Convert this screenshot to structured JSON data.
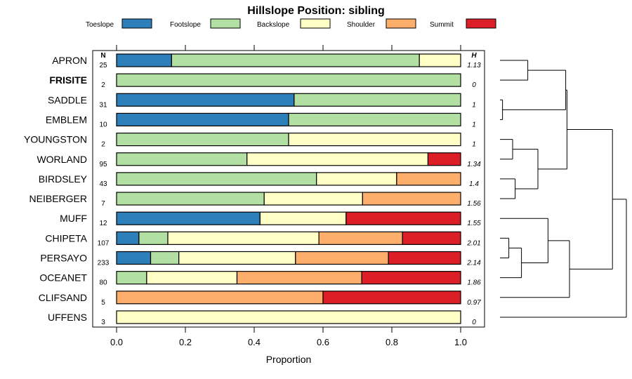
{
  "chart_data": {
    "type": "bar",
    "subtype": "stacked-horizontal-proportion",
    "title": "Hillslope Position: sibling",
    "xlabel": "Proportion",
    "xlim": [
      0,
      1
    ],
    "xticks": [
      "0.0",
      "0.2",
      "0.4",
      "0.6",
      "0.8",
      "1.0"
    ],
    "n_header": "N",
    "h_header": "H",
    "legend": [
      {
        "label": "Toeslope",
        "color": "#2c7fb8"
      },
      {
        "label": "Footslope",
        "color": "#b2dfa2"
      },
      {
        "label": "Backslope",
        "color": "#ffffc6"
      },
      {
        "label": "Shoulder",
        "color": "#fdae6b"
      },
      {
        "label": "Summit",
        "color": "#dc1f26"
      }
    ],
    "categories": [
      "APRON",
      "FRISITE",
      "SADDLE",
      "EMBLEM",
      "YOUNGSTON",
      "WORLAND",
      "BIRDSLEY",
      "NEIBERGER",
      "MUFF",
      "CHIPETA",
      "PERSAYO",
      "OCEANET",
      "CLIFSAND",
      "UFFENS"
    ],
    "highlighted": "FRISITE",
    "n": [
      "25",
      "2",
      "31",
      "10",
      "2",
      "95",
      "43",
      "7",
      "12",
      "107",
      "233",
      "80",
      "5",
      "3"
    ],
    "h": [
      "1.13",
      "0",
      "1",
      "1",
      "1",
      "1.34",
      "1.4",
      "1.56",
      "1.55",
      "2.01",
      "2.14",
      "1.86",
      "0.97",
      "0"
    ],
    "series": [
      {
        "name": "Toeslope",
        "values": [
          0.16,
          0,
          0.516,
          0.5,
          0,
          0,
          0,
          0,
          0.417,
          0.065,
          0.099,
          0,
          0,
          0
        ]
      },
      {
        "name": "Footslope",
        "values": [
          0.72,
          1.0,
          0.484,
          0.5,
          0.5,
          0.379,
          0.581,
          0.429,
          0,
          0.084,
          0.082,
          0.0875,
          0,
          0
        ]
      },
      {
        "name": "Backslope",
        "values": [
          0.12,
          0,
          0,
          0,
          0.5,
          0.526,
          0.233,
          0.286,
          0.25,
          0.439,
          0.339,
          0.2625,
          0,
          1.0
        ]
      },
      {
        "name": "Shoulder",
        "values": [
          0,
          0,
          0,
          0,
          0,
          0,
          0.186,
          0.285,
          0,
          0.243,
          0.27,
          0.3625,
          0.6,
          0
        ]
      },
      {
        "name": "Summit",
        "values": [
          0,
          0,
          0,
          0,
          0,
          0.095,
          0,
          0,
          0.333,
          0.169,
          0.21,
          0.2875,
          0.4,
          0
        ]
      }
    ],
    "dendrogram": {
      "leaves": [
        "APRON",
        "FRISITE",
        "SADDLE",
        "EMBLEM",
        "YOUNGSTON",
        "WORLAND",
        "BIRDSLEY",
        "NEIBERGER",
        "MUFF",
        "CHIPETA",
        "PERSAYO",
        "OCEANET",
        "CLIFSAND",
        "UFFENS"
      ],
      "merges": [
        [
          0,
          1,
          0.22
        ],
        [
          2,
          3,
          0.02
        ],
        [
          -1,
          -2,
          0.52
        ],
        [
          4,
          5,
          0.1
        ],
        [
          6,
          7,
          0.12
        ],
        [
          -4,
          -5,
          0.3
        ],
        [
          -3,
          -6,
          0.53
        ],
        [
          9,
          10,
          0.07
        ],
        [
          -8,
          11,
          0.17
        ],
        [
          -9,
          8,
          0.38
        ],
        [
          -10,
          12,
          0.55
        ],
        [
          -7,
          -11,
          0.89
        ],
        [
          -12,
          13,
          1.0
        ]
      ]
    }
  }
}
